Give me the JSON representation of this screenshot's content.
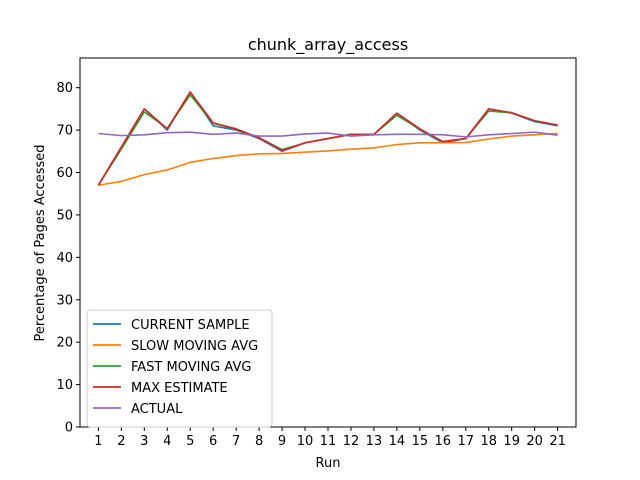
{
  "chart_data": {
    "type": "line",
    "title": "chunk_array_access",
    "xlabel": "Run",
    "ylabel": "Percentage of Pages Accessed",
    "x": [
      1,
      2,
      3,
      4,
      5,
      6,
      7,
      8,
      9,
      10,
      11,
      12,
      13,
      14,
      15,
      16,
      17,
      18,
      19,
      20,
      21
    ],
    "xlim": [
      0.2,
      21.8
    ],
    "ylim": [
      0,
      87
    ],
    "yticks": [
      0,
      10,
      20,
      30,
      40,
      50,
      60,
      70,
      80
    ],
    "grid": false,
    "legend_position": "lower left",
    "series": [
      {
        "name": "CURRENT SAMPLE",
        "color": "#1f77b4",
        "values": [
          57,
          66,
          75,
          70,
          79,
          71,
          70,
          68,
          65,
          67,
          68,
          69,
          69,
          74,
          70,
          67,
          68,
          75,
          74,
          72,
          71
        ]
      },
      {
        "name": "SLOW MOVING AVG",
        "color": "#ff7f0e",
        "values": [
          57,
          57.9,
          59.5,
          60.6,
          62.4,
          63.3,
          64,
          64.4,
          64.5,
          64.8,
          65.1,
          65.5,
          65.8,
          66.6,
          67,
          67,
          67.1,
          67.9,
          68.6,
          68.9,
          69.2
        ]
      },
      {
        "name": "FAST MOVING AVG",
        "color": "#2ca02c",
        "values": [
          57,
          65.5,
          74.3,
          70.4,
          78.3,
          71.6,
          70.2,
          68.2,
          65.4,
          67,
          68,
          69,
          69,
          73.5,
          70.2,
          67.3,
          68,
          74.5,
          74.1,
          72.2,
          71.2
        ]
      },
      {
        "name": "MAX ESTIMATE",
        "color": "#d62728",
        "values": [
          57,
          66,
          75,
          70.3,
          79,
          71.7,
          70.3,
          68.2,
          65.2,
          67,
          68,
          69,
          69,
          74,
          70.3,
          67.3,
          68,
          75,
          74.1,
          72.2,
          71.2
        ]
      },
      {
        "name": "ACTUAL",
        "color": "#9467bd",
        "values": [
          69.2,
          68.7,
          68.9,
          69.4,
          69.5,
          69.0,
          69.3,
          68.6,
          68.6,
          69.1,
          69.3,
          68.6,
          68.9,
          69.0,
          69.0,
          68.9,
          68.4,
          68.9,
          69.2,
          69.5,
          68.8
        ]
      }
    ]
  }
}
